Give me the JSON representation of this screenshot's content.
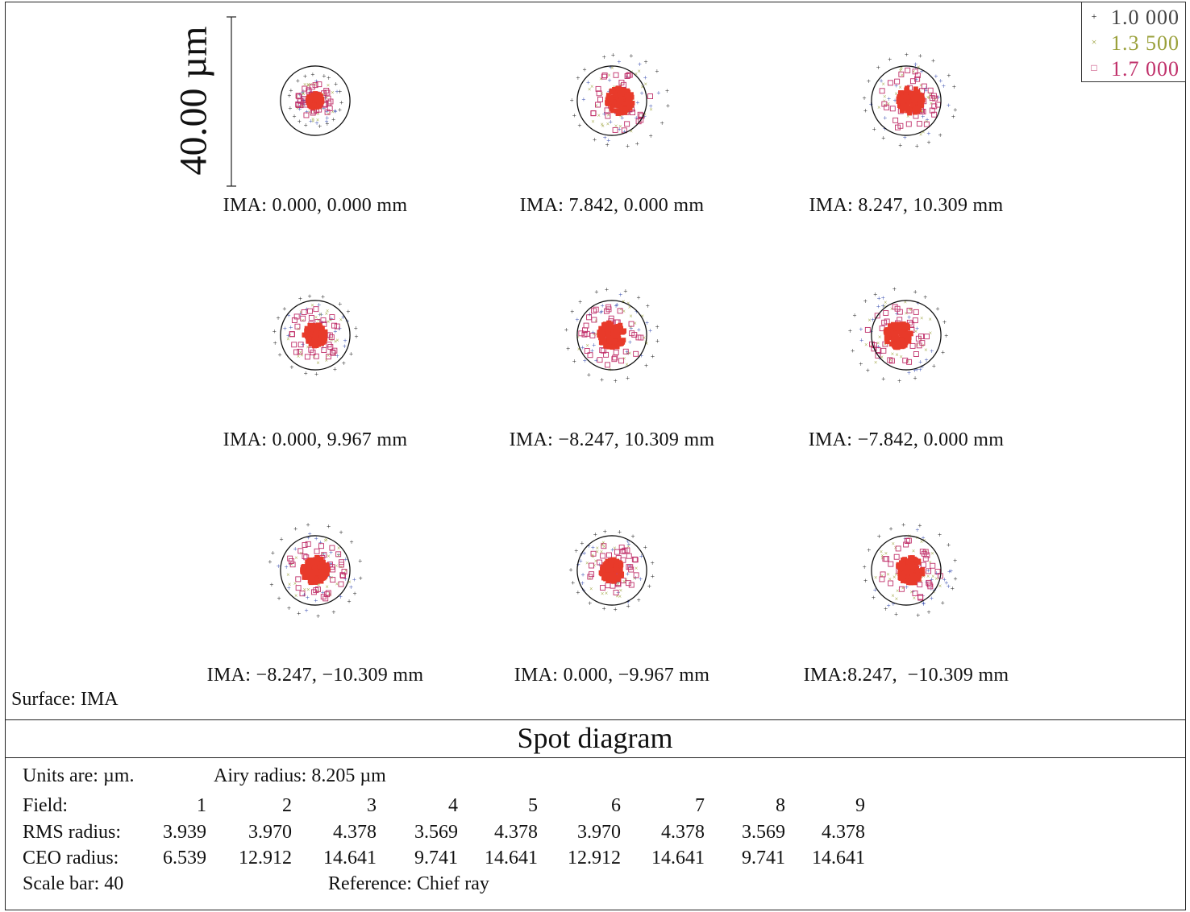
{
  "chart_data": {
    "type": "scatter",
    "title": "Spot diagram",
    "scale_bar_label": "40.00 µm",
    "surface_label": "Surface: IMA",
    "legend": [
      {
        "label": "1.0 000",
        "marker": "+",
        "color": "#222222"
      },
      {
        "label": "1.3 500",
        "marker": "x",
        "color": "#9aa03a"
      },
      {
        "label": "1.7 000",
        "marker": "□",
        "color": "#c0306a"
      }
    ],
    "fields": [
      {
        "label": "IMA: 0.000, 0.000 mm",
        "rms": 3.939,
        "geo": 6.539
      },
      {
        "label": "IMA: 7.842, 0.000 mm",
        "rms": 3.97,
        "geo": 12.912
      },
      {
        "label": "IMA: 8.247, 10.309 mm",
        "rms": 4.378,
        "geo": 14.641
      },
      {
        "label": "IMA: 0.000, 9.967 mm",
        "rms": 3.569,
        "geo": 9.741
      },
      {
        "label": "IMA: −8.247, 10.309 mm",
        "rms": 4.378,
        "geo": 14.641
      },
      {
        "label": "IMA: −7.842, 0.000 mm",
        "rms": 3.97,
        "geo": 12.912
      },
      {
        "label": "IMA: −8.247, −10.309 mm",
        "rms": 4.378,
        "geo": 14.641
      },
      {
        "label": "IMA: 0.000, −9.967 mm",
        "rms": 3.569,
        "geo": 9.741
      },
      {
        "label": "IMA:8.247,  −10.309 mm",
        "rms": 4.378,
        "geo": 14.641
      }
    ],
    "airy_radius_um": 8.205,
    "scale_bar_um": 40
  },
  "info": {
    "units": "Units are: µm.",
    "airy": "Airy radius: 8.205 µm",
    "field_label": "Field:",
    "rms_label": "RMS radius:",
    "geo_label": "CEO radius:",
    "field_numbers": [
      "1",
      "2",
      "3",
      "4",
      "5",
      "6",
      "7",
      "8",
      "9"
    ],
    "rms_values": [
      "3.939",
      "3.970",
      "4.378",
      "3.569",
      "4.378",
      "3.970",
      "4.378",
      "3.569",
      "4.378"
    ],
    "geo_values": [
      "6.539",
      "12.912",
      "14.641",
      "9.741",
      "14.641",
      "12.912",
      "14.641",
      "9.741",
      "14.641"
    ],
    "scale_bar": "Scale bar: 40",
    "reference": "Reference: Chief ray"
  }
}
